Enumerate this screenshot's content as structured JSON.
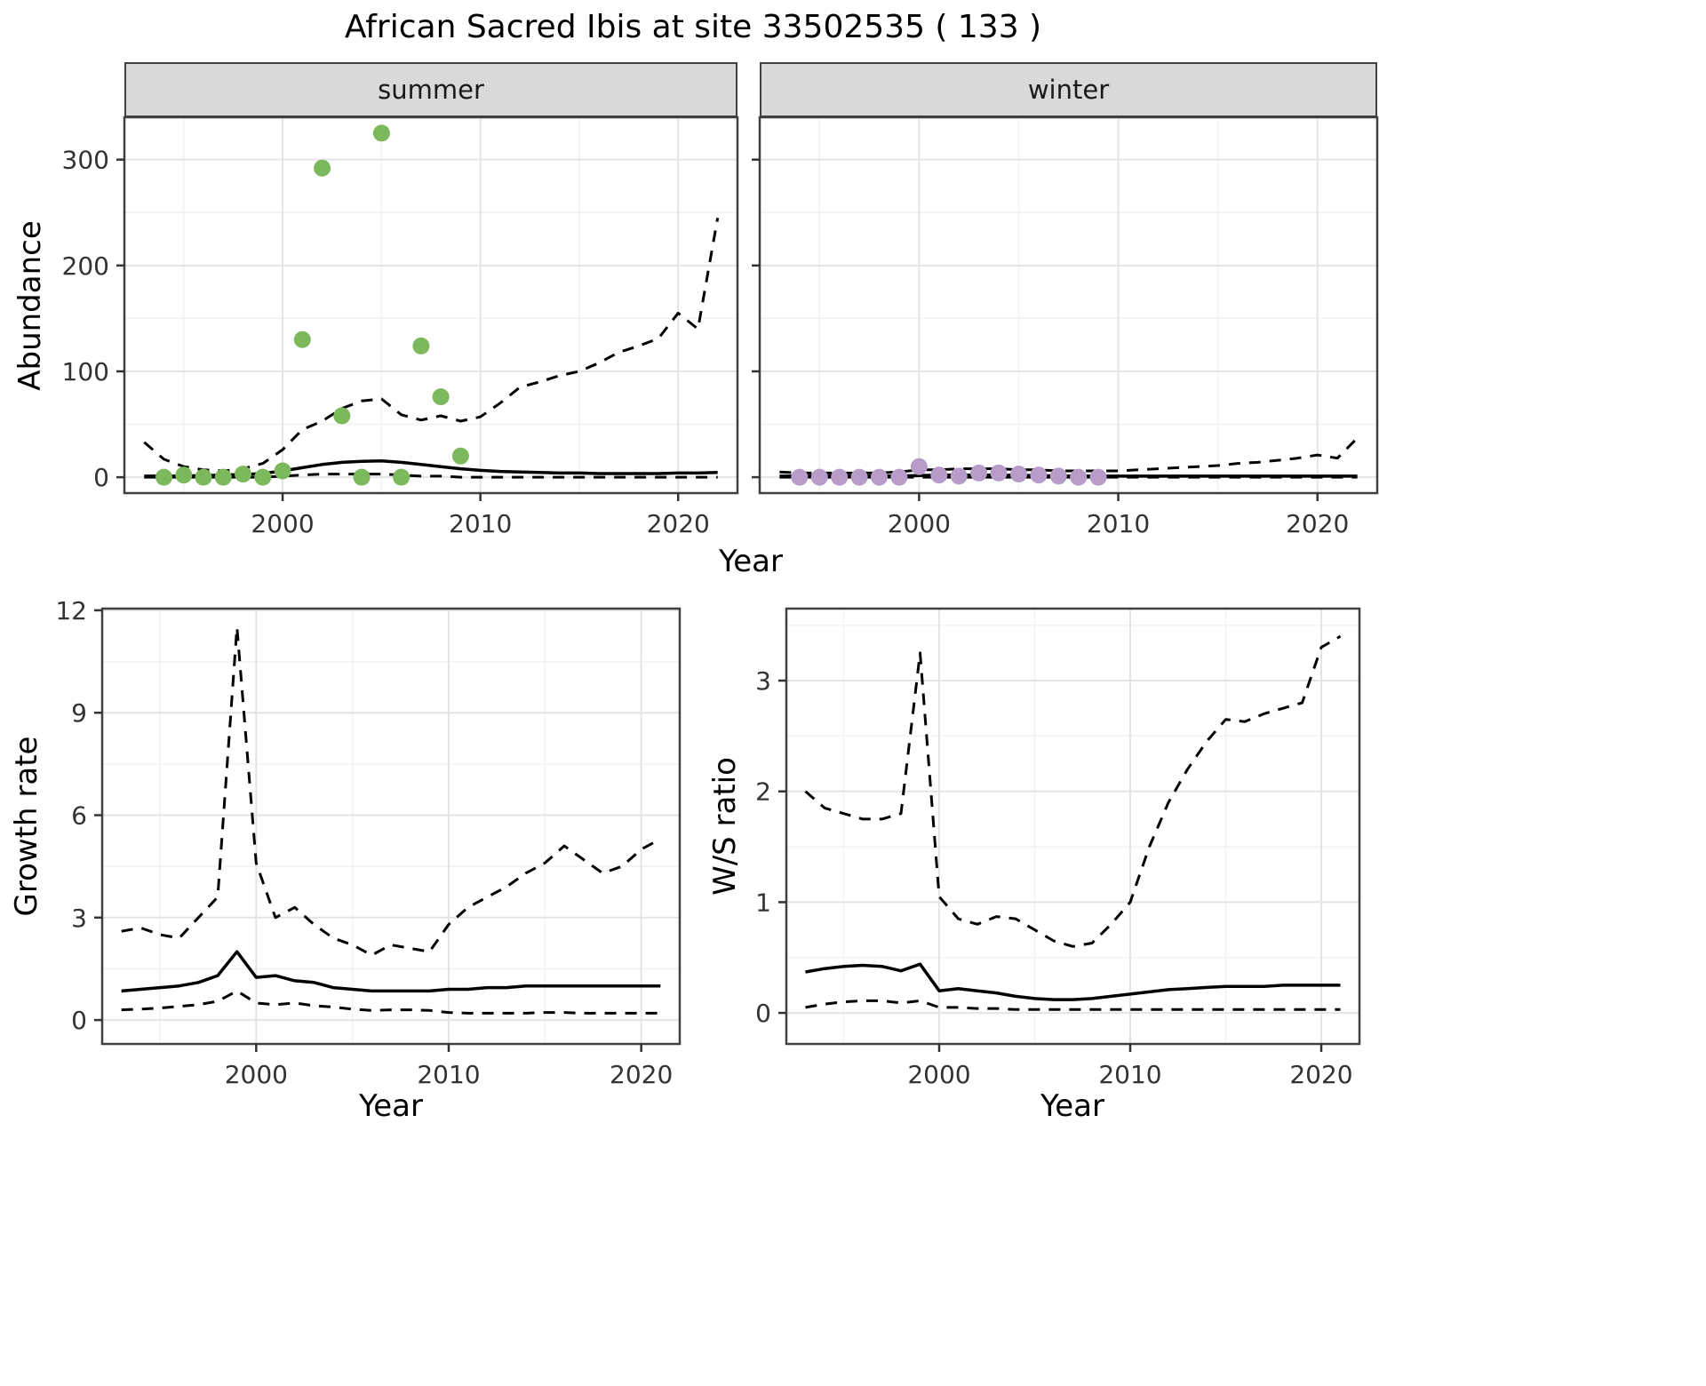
{
  "title": "African Sacred Ibis at site 33502535 ( 133 )",
  "colors": {
    "summer_points": "#7cb85c",
    "winter_points": "#b79bc9",
    "line": "#000000",
    "grid_major": "#e4e4e4",
    "grid_minor": "#f2f2f2",
    "strip_bg": "#d9d9d9",
    "panel_border": "#404040",
    "tick": "#333333"
  },
  "chart_data": [
    {
      "id": "abundance-summer",
      "type": "line",
      "facet": "summer",
      "ylabel": "Abundance",
      "xlabel": "Year",
      "xlim": [
        1992,
        2023
      ],
      "ylim": [
        -15,
        340
      ],
      "xticks": [
        2000,
        2010,
        2020
      ],
      "yticks": [
        0,
        100,
        200,
        300
      ],
      "grid": true,
      "legend": "none",
      "points": {
        "color_key": "summer_points",
        "x": [
          1994,
          1995,
          1996,
          1997,
          1998,
          1999,
          2000,
          2001,
          2002,
          2003,
          2004,
          2005,
          2006,
          2007,
          2008,
          2009
        ],
        "y": [
          0,
          2,
          0,
          0,
          3,
          0,
          6,
          130,
          292,
          58,
          0,
          325,
          0,
          124,
          76,
          20
        ]
      },
      "series": [
        {
          "name": "fit",
          "style": "solid",
          "x": [
            1993,
            1994,
            1995,
            1996,
            1997,
            1998,
            1999,
            2000,
            2001,
            2002,
            2003,
            2004,
            2005,
            2006,
            2007,
            2008,
            2009,
            2010,
            2011,
            2012,
            2013,
            2014,
            2015,
            2016,
            2017,
            2018,
            2019,
            2020,
            2021,
            2022
          ],
          "y": [
            1,
            1,
            1,
            1.5,
            2,
            2.5,
            3.5,
            6,
            9,
            12,
            14,
            15,
            15.5,
            14,
            12,
            10,
            8,
            6.5,
            5.5,
            5,
            4.5,
            4,
            4,
            3.5,
            3.5,
            3.5,
            3.5,
            4,
            4,
            4.5
          ]
        },
        {
          "name": "upper95",
          "style": "dashed",
          "x": [
            1993,
            1994,
            1995,
            1996,
            1997,
            1998,
            1999,
            2000,
            2001,
            2002,
            2003,
            2004,
            2005,
            2006,
            2007,
            2008,
            2009,
            2010,
            2011,
            2012,
            2013,
            2014,
            2015,
            2016,
            2017,
            2018,
            2019,
            2020,
            2021,
            2022
          ],
          "y": [
            33,
            17,
            10,
            7,
            6,
            8,
            13,
            26,
            45,
            53,
            65,
            72,
            74,
            59,
            54,
            58,
            53,
            57,
            70,
            85,
            90,
            96,
            100,
            108,
            118,
            124,
            131,
            155,
            140,
            245
          ]
        },
        {
          "name": "lower95",
          "style": "dashed",
          "x": [
            1993,
            1994,
            1995,
            1996,
            1997,
            1998,
            1999,
            2000,
            2001,
            2002,
            2003,
            2004,
            2005,
            2006,
            2007,
            2008,
            2009,
            2010,
            2011,
            2012,
            2013,
            2014,
            2015,
            2016,
            2017,
            2018,
            2019,
            2020,
            2021,
            2022
          ],
          "y": [
            0,
            0,
            0,
            0,
            0,
            0,
            0,
            1,
            2,
            3,
            3,
            3,
            3,
            2,
            1,
            1,
            0,
            0,
            0,
            0,
            0,
            0,
            0,
            0,
            0,
            0,
            0,
            0,
            0,
            0
          ]
        }
      ]
    },
    {
      "id": "abundance-winter",
      "type": "line",
      "facet": "winter",
      "ylabel": "Abundance",
      "xlabel": "Year",
      "xlim": [
        1992,
        2023
      ],
      "ylim": [
        -15,
        340
      ],
      "xticks": [
        2000,
        2010,
        2020
      ],
      "yticks": [
        0,
        100,
        200,
        300
      ],
      "grid": true,
      "legend": "none",
      "points": {
        "color_key": "winter_points",
        "x": [
          1994,
          1995,
          1996,
          1997,
          1998,
          1999,
          2000,
          2001,
          2002,
          2003,
          2004,
          2005,
          2006,
          2007,
          2008,
          2009
        ],
        "y": [
          0,
          0,
          0,
          0,
          0,
          0,
          10,
          2,
          1,
          4,
          4,
          3,
          2,
          1,
          0,
          0
        ]
      },
      "series": [
        {
          "name": "fit",
          "style": "solid",
          "x": [
            1993,
            1994,
            1995,
            1996,
            1997,
            1998,
            1999,
            2000,
            2001,
            2002,
            2003,
            2004,
            2005,
            2006,
            2007,
            2008,
            2009,
            2010,
            2011,
            2012,
            2013,
            2014,
            2015,
            2016,
            2017,
            2018,
            2019,
            2020,
            2021,
            2022
          ],
          "y": [
            1,
            1,
            1,
            1,
            1,
            1,
            1.2,
            1.5,
            2,
            2,
            2,
            2,
            1.8,
            1.5,
            1.2,
            1,
            1,
            1,
            1,
            1,
            1,
            1,
            1,
            1,
            1,
            1,
            1,
            1,
            1,
            1
          ]
        },
        {
          "name": "upper95",
          "style": "dashed",
          "x": [
            1993,
            1994,
            1995,
            1996,
            1997,
            1998,
            1999,
            2000,
            2001,
            2002,
            2003,
            2004,
            2005,
            2006,
            2007,
            2008,
            2009,
            2010,
            2011,
            2012,
            2013,
            2014,
            2015,
            2016,
            2017,
            2018,
            2019,
            2020,
            2021,
            2022
          ],
          "y": [
            5,
            4,
            4,
            4,
            4,
            4,
            5,
            7,
            7,
            8,
            8,
            8,
            7,
            7,
            6,
            6,
            6,
            6,
            7,
            8,
            9,
            10,
            11,
            13,
            14,
            16,
            18,
            21,
            18,
            37
          ]
        },
        {
          "name": "lower95",
          "style": "dashed",
          "x": [
            1993,
            1994,
            1995,
            1996,
            1997,
            1998,
            1999,
            2000,
            2001,
            2002,
            2003,
            2004,
            2005,
            2006,
            2007,
            2008,
            2009,
            2010,
            2011,
            2012,
            2013,
            2014,
            2015,
            2016,
            2017,
            2018,
            2019,
            2020,
            2021,
            2022
          ],
          "y": [
            0,
            0,
            0,
            0,
            0,
            0,
            0,
            0,
            0,
            0,
            0,
            0,
            0,
            0,
            0,
            0,
            0,
            0,
            0,
            0,
            0,
            0,
            0,
            0,
            0,
            0,
            0,
            0,
            0,
            0
          ]
        }
      ]
    },
    {
      "id": "growth-rate",
      "type": "line",
      "facet": "",
      "ylabel": "Growth rate",
      "xlabel": "Year",
      "xlim": [
        1992,
        2022
      ],
      "ylim": [
        -0.7,
        12.05
      ],
      "xticks": [
        2000,
        2010,
        2020
      ],
      "yticks": [
        0,
        3,
        6,
        9,
        12
      ],
      "grid": true,
      "legend": "none",
      "series": [
        {
          "name": "fit",
          "style": "solid",
          "x": [
            1993,
            1994,
            1995,
            1996,
            1997,
            1998,
            1999,
            2000,
            2001,
            2002,
            2003,
            2004,
            2005,
            2006,
            2007,
            2008,
            2009,
            2010,
            2011,
            2012,
            2013,
            2014,
            2015,
            2016,
            2017,
            2018,
            2019,
            2020,
            2021
          ],
          "y": [
            0.85,
            0.9,
            0.95,
            1.0,
            1.1,
            1.3,
            2.0,
            1.25,
            1.3,
            1.15,
            1.1,
            0.95,
            0.9,
            0.85,
            0.85,
            0.85,
            0.85,
            0.9,
            0.9,
            0.95,
            0.95,
            1.0,
            1.0,
            1.0,
            1.0,
            1.0,
            1.0,
            1.0,
            1.0
          ]
        },
        {
          "name": "upper95",
          "style": "dashed",
          "x": [
            1993,
            1994,
            1995,
            1996,
            1997,
            1998,
            1999,
            2000,
            2001,
            2002,
            2003,
            2004,
            2005,
            2006,
            2007,
            2008,
            2009,
            2010,
            2011,
            2012,
            2013,
            2014,
            2015,
            2016,
            2017,
            2018,
            2019,
            2020,
            2021
          ],
          "y": [
            2.6,
            2.7,
            2.5,
            2.4,
            3.0,
            3.6,
            11.5,
            4.6,
            3.0,
            3.3,
            2.8,
            2.4,
            2.2,
            1.9,
            2.2,
            2.1,
            2.0,
            2.8,
            3.3,
            3.6,
            3.9,
            4.3,
            4.6,
            5.1,
            4.7,
            4.3,
            4.5,
            5.0,
            5.3
          ]
        },
        {
          "name": "lower95",
          "style": "dashed",
          "x": [
            1993,
            1994,
            1995,
            1996,
            1997,
            1998,
            1999,
            2000,
            2001,
            2002,
            2003,
            2004,
            2005,
            2006,
            2007,
            2008,
            2009,
            2010,
            2011,
            2012,
            2013,
            2014,
            2015,
            2016,
            2017,
            2018,
            2019,
            2020,
            2021
          ],
          "y": [
            0.3,
            0.32,
            0.35,
            0.4,
            0.45,
            0.55,
            0.85,
            0.5,
            0.45,
            0.5,
            0.42,
            0.38,
            0.32,
            0.28,
            0.3,
            0.3,
            0.28,
            0.22,
            0.2,
            0.2,
            0.2,
            0.2,
            0.22,
            0.22,
            0.2,
            0.2,
            0.2,
            0.2,
            0.2
          ]
        }
      ]
    },
    {
      "id": "ws-ratio",
      "type": "line",
      "facet": "",
      "ylabel": "W/S ratio",
      "xlabel": "Year",
      "xlim": [
        1992,
        2022
      ],
      "ylim": [
        -0.28,
        3.65
      ],
      "xticks": [
        2000,
        2010,
        2020
      ],
      "yticks": [
        0,
        1,
        2,
        3
      ],
      "grid": true,
      "legend": "none",
      "series": [
        {
          "name": "fit",
          "style": "solid",
          "x": [
            1993,
            1994,
            1995,
            1996,
            1997,
            1998,
            1999,
            2000,
            2001,
            2002,
            2003,
            2004,
            2005,
            2006,
            2007,
            2008,
            2009,
            2010,
            2011,
            2012,
            2013,
            2014,
            2015,
            2016,
            2017,
            2018,
            2019,
            2020,
            2021
          ],
          "y": [
            0.37,
            0.4,
            0.42,
            0.43,
            0.42,
            0.38,
            0.44,
            0.2,
            0.22,
            0.2,
            0.18,
            0.15,
            0.13,
            0.12,
            0.12,
            0.13,
            0.15,
            0.17,
            0.19,
            0.21,
            0.22,
            0.23,
            0.24,
            0.24,
            0.24,
            0.25,
            0.25,
            0.25,
            0.25
          ]
        },
        {
          "name": "upper95",
          "style": "dashed",
          "x": [
            1993,
            1994,
            1995,
            1996,
            1997,
            1998,
            1999,
            2000,
            2001,
            2002,
            2003,
            2004,
            2005,
            2006,
            2007,
            2008,
            2009,
            2010,
            2011,
            2012,
            2013,
            2014,
            2015,
            2016,
            2017,
            2018,
            2019,
            2020,
            2021
          ],
          "y": [
            2.0,
            1.85,
            1.8,
            1.75,
            1.75,
            1.8,
            3.25,
            1.05,
            0.85,
            0.8,
            0.87,
            0.85,
            0.75,
            0.65,
            0.6,
            0.63,
            0.8,
            1.0,
            1.5,
            1.9,
            2.2,
            2.45,
            2.65,
            2.63,
            2.7,
            2.75,
            2.8,
            3.3,
            3.4
          ]
        },
        {
          "name": "lower95",
          "style": "dashed",
          "x": [
            1993,
            1994,
            1995,
            1996,
            1997,
            1998,
            1999,
            2000,
            2001,
            2002,
            2003,
            2004,
            2005,
            2006,
            2007,
            2008,
            2009,
            2010,
            2011,
            2012,
            2013,
            2014,
            2015,
            2016,
            2017,
            2018,
            2019,
            2020,
            2021
          ],
          "y": [
            0.05,
            0.08,
            0.1,
            0.11,
            0.11,
            0.09,
            0.11,
            0.05,
            0.05,
            0.04,
            0.04,
            0.03,
            0.03,
            0.03,
            0.03,
            0.03,
            0.03,
            0.03,
            0.03,
            0.03,
            0.03,
            0.03,
            0.03,
            0.03,
            0.03,
            0.03,
            0.03,
            0.03,
            0.03
          ]
        }
      ]
    }
  ]
}
